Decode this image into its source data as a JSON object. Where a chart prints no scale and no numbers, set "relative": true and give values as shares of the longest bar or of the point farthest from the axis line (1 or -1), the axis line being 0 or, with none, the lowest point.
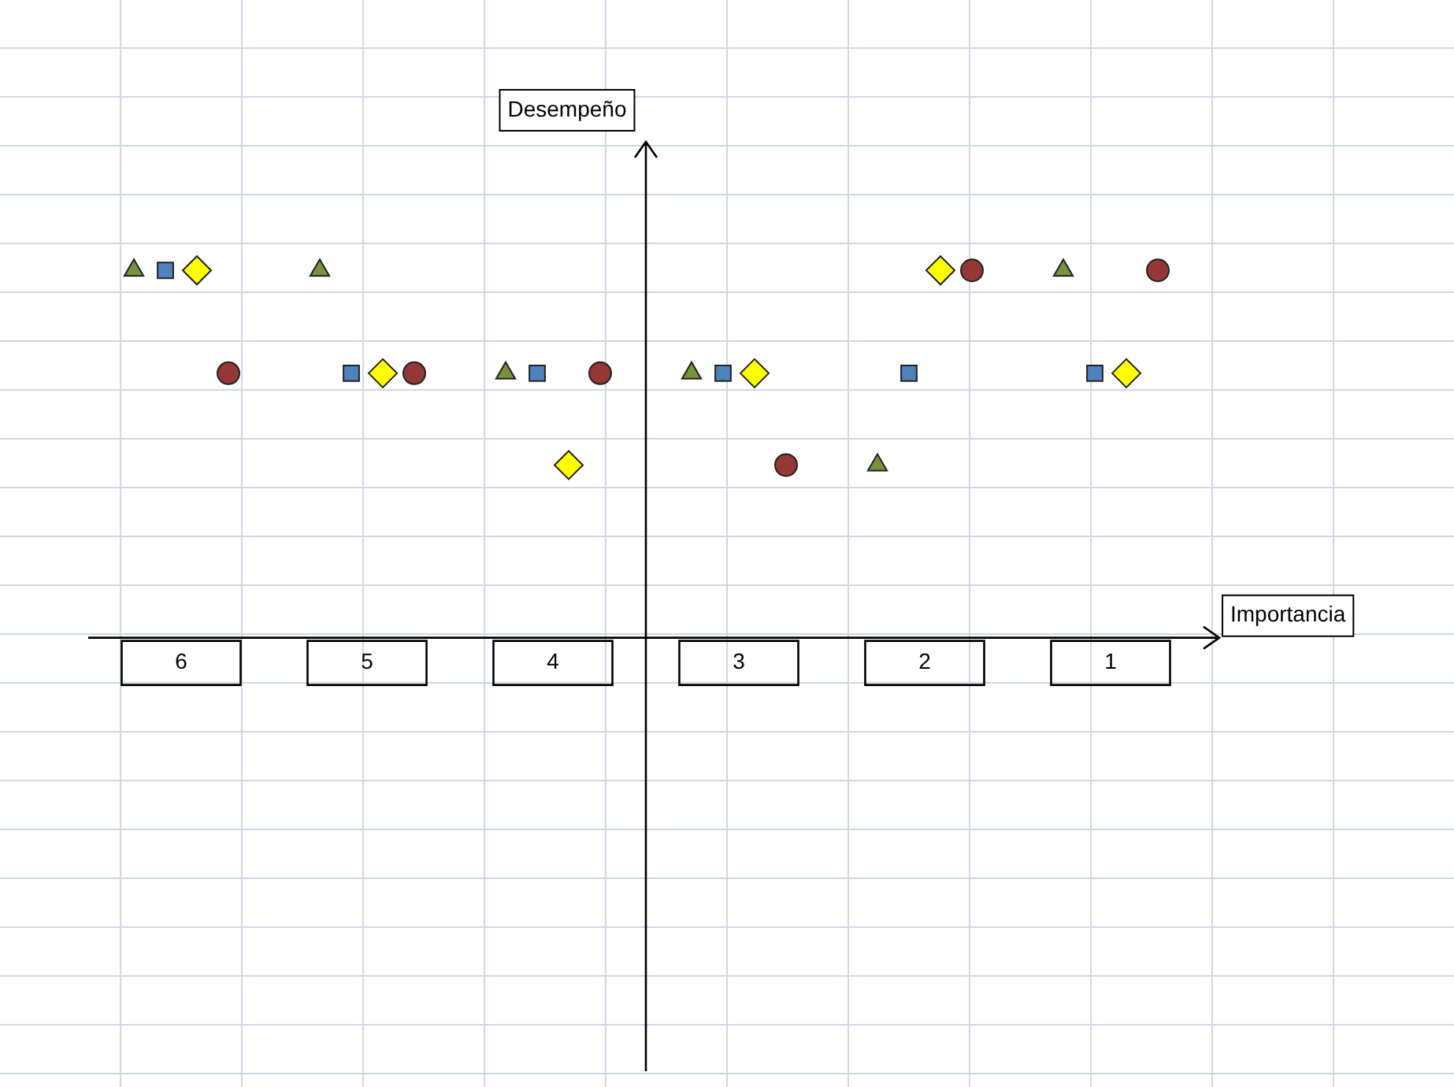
{
  "chart_data": {
    "type": "scatter",
    "relative": true,
    "xlabel": "Importancia",
    "annotations": [
      "Desempeño"
    ],
    "legend": false,
    "categories": [
      "6",
      "5",
      "4",
      "3",
      "2",
      "1"
    ],
    "series": [
      {
        "marker": "triangle",
        "color": "#77933c",
        "values": [
          1,
          1,
          0.72,
          0.72,
          0.47,
          1
        ]
      },
      {
        "marker": "square",
        "color": "#4f81bd",
        "values": [
          1,
          0.72,
          0.72,
          0.72,
          0.72,
          0.72
        ]
      },
      {
        "marker": "diamond",
        "color": "#ffff00",
        "values": [
          1,
          0.72,
          0.47,
          0.72,
          1,
          0.72
        ]
      },
      {
        "marker": "circle",
        "color": "#953735",
        "values": [
          0.72,
          0.72,
          0.72,
          0.47,
          1,
          1
        ]
      }
    ]
  }
}
